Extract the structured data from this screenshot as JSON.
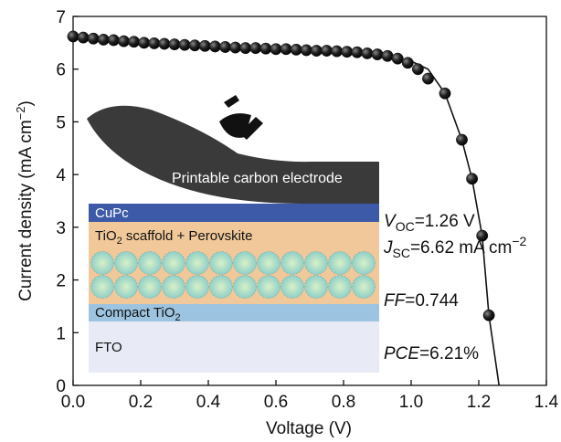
{
  "chart_data": {
    "type": "scatter",
    "xlabel": "Voltage (V)",
    "ylabel": [
      "Current density (mA cm",
      "−2",
      ")"
    ],
    "xlim": [
      0,
      1.4
    ],
    "ylim": [
      0,
      7
    ],
    "xticks": [
      {
        "value": 0,
        "label": "0.0"
      },
      0.2,
      0.4,
      0.6,
      0.8,
      {
        "value": 1,
        "label": "1.0"
      },
      1.2,
      1.4
    ],
    "yticks": [
      0,
      1,
      2,
      3,
      4,
      5,
      6,
      7
    ],
    "color": "#111111",
    "x": [
      0,
      0.03,
      0.06,
      0.09,
      0.12,
      0.15,
      0.18,
      0.21,
      0.24,
      0.27,
      0.3,
      0.33,
      0.36,
      0.39,
      0.42,
      0.45,
      0.48,
      0.51,
      0.54,
      0.57,
      0.6,
      0.63,
      0.66,
      0.69,
      0.72,
      0.75,
      0.78,
      0.81,
      0.84,
      0.87,
      0.9,
      0.93,
      0.96,
      0.99,
      1.02,
      1.05,
      1.1,
      1.15,
      1.18,
      1.21,
      1.23
    ],
    "values": [
      6.62,
      6.6,
      6.58,
      6.56,
      6.55,
      6.53,
      6.52,
      6.5,
      6.49,
      6.48,
      6.47,
      6.46,
      6.45,
      6.44,
      6.43,
      6.42,
      6.41,
      6.4,
      6.4,
      6.39,
      6.38,
      6.38,
      6.37,
      6.36,
      6.35,
      6.35,
      6.34,
      6.33,
      6.32,
      6.3,
      6.28,
      6.25,
      6.2,
      6.12,
      6.0,
      5.82,
      5.54,
      4.66,
      3.92,
      2.84,
      1.33
    ],
    "fit": {
      "x": [
        0,
        0.5,
        0.9,
        1.0,
        1.05,
        1.1,
        1.15,
        1.18,
        1.21,
        1.23,
        1.26
      ],
      "values": [
        6.62,
        6.41,
        6.3,
        6.15,
        6.0,
        5.54,
        4.66,
        3.92,
        2.84,
        1.33,
        0
      ]
    },
    "annotations": [
      {
        "parts": [
          "V",
          "OC",
          "=1.26 V"
        ]
      },
      {
        "parts": [
          "J",
          "SC",
          "=6.62 mA cm",
          "−2"
        ]
      },
      {
        "parts": [
          "FF",
          "=0.744"
        ]
      },
      {
        "parts": [
          "PCE",
          "=6.21%"
        ]
      }
    ],
    "inset": {
      "carbon": "Printable carbon electrode",
      "cupc": "CuPc",
      "scaffold": [
        "TiO",
        "2",
        " scaffold + Perovskite"
      ],
      "compact": [
        "Compact TiO",
        "2"
      ],
      "fto": "FTO"
    }
  }
}
